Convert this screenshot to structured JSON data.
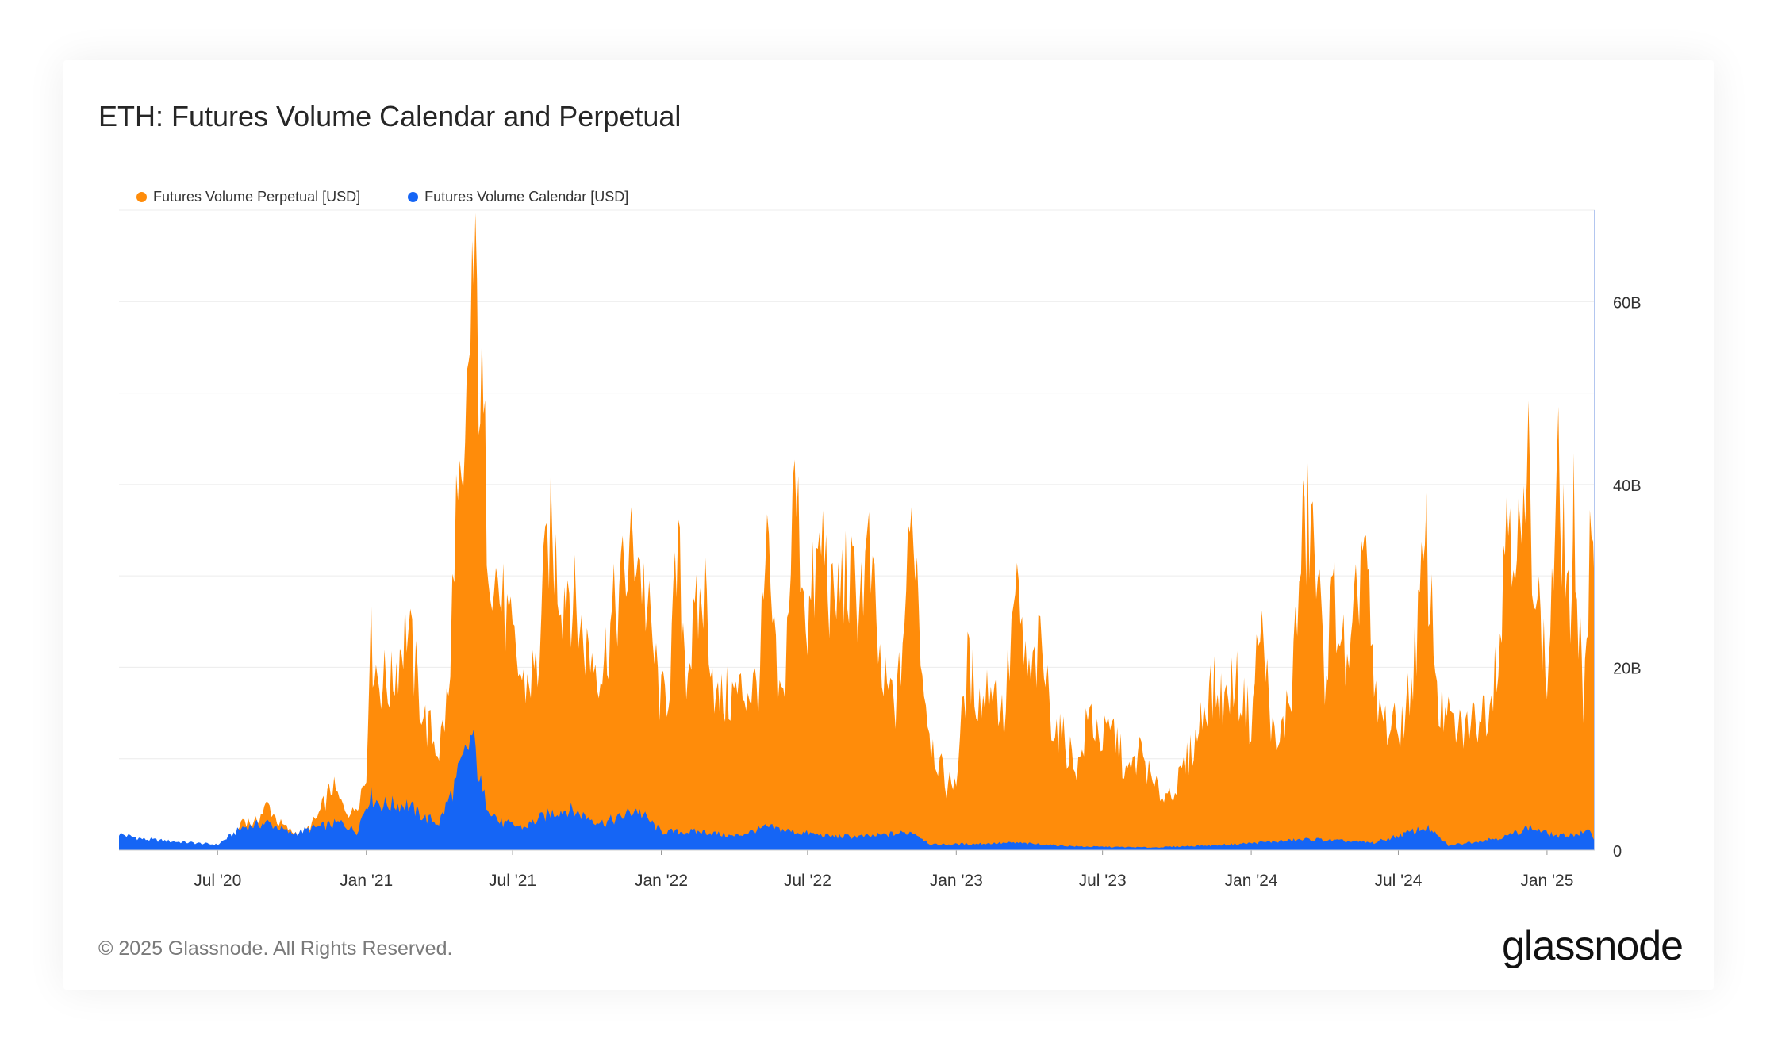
{
  "title": "ETH: Futures Volume Calendar and Perpetual",
  "footer": "© 2025 Glassnode. All Rights Reserved.",
  "logo": "glassnode",
  "colors": {
    "perpetual": "#ff8c0a",
    "calendar": "#1565f5",
    "grid": "#ececec",
    "axis": "#b3c6ef"
  },
  "chart_data": {
    "type": "area",
    "title": "ETH: Futures Volume Calendar and Perpetual",
    "x_start": "2020-03-01",
    "x_end": "2025-03-01",
    "x_ticks": [
      "Jul '20",
      "Jan '21",
      "Jul '21",
      "Jan '22",
      "Jul '22",
      "Jan '23",
      "Jul '23",
      "Jan '24",
      "Jul '24",
      "Jan '25"
    ],
    "y_ticks": [
      "0",
      "20B",
      "40B",
      "60B"
    ],
    "y_unit": "USD",
    "ylim": [
      0,
      70000000000
    ],
    "y_axis_side": "right",
    "legend_position": "top-left",
    "grid": true,
    "series": [
      {
        "name": "Futures Volume Perpetual [USD]",
        "color": "#ff8c0a",
        "points": [
          [
            "2020-03-01",
            1500000000.0
          ],
          [
            "2020-04-01",
            1000000000.0
          ],
          [
            "2020-05-01",
            900000000.0
          ],
          [
            "2020-06-01",
            700000000.0
          ],
          [
            "2020-06-20",
            600000000.0
          ],
          [
            "2020-07-01",
            600000000.0
          ],
          [
            "2020-07-20",
            800000000.0
          ],
          [
            "2020-08-01",
            3500000000.0
          ],
          [
            "2020-08-15",
            2800000000.0
          ],
          [
            "2020-09-01",
            5000000000.0
          ],
          [
            "2020-09-15",
            3000000000.0
          ],
          [
            "2020-10-01",
            2000000000.0
          ],
          [
            "2020-10-15",
            1800000000.0
          ],
          [
            "2020-11-01",
            3500000000.0
          ],
          [
            "2020-11-20",
            7000000000.0
          ],
          [
            "2020-12-01",
            5000000000.0
          ],
          [
            "2020-12-15",
            4000000000.0
          ],
          [
            "2021-01-01",
            8000000000.0
          ],
          [
            "2021-01-05",
            24000000000.0
          ],
          [
            "2021-01-15",
            19000000000.0
          ],
          [
            "2021-02-01",
            18000000000.0
          ],
          [
            "2021-02-20",
            25000000000.0
          ],
          [
            "2021-03-01",
            20000000000.0
          ],
          [
            "2021-03-15",
            14000000000.0
          ],
          [
            "2021-04-01",
            11000000000.0
          ],
          [
            "2021-04-15",
            18000000000.0
          ],
          [
            "2021-04-20",
            37000000000.0
          ],
          [
            "2021-05-01",
            35000000000.0
          ],
          [
            "2021-05-12",
            63000000000.0
          ],
          [
            "2021-05-20",
            55000000000.0
          ],
          [
            "2021-06-01",
            35000000000.0
          ],
          [
            "2021-06-15",
            28000000000.0
          ],
          [
            "2021-07-01",
            22000000000.0
          ],
          [
            "2021-07-15",
            18000000000.0
          ],
          [
            "2021-08-01",
            20000000000.0
          ],
          [
            "2021-08-15",
            35000000000.0
          ],
          [
            "2021-09-01",
            28000000000.0
          ],
          [
            "2021-09-07",
            30000000000.0
          ],
          [
            "2021-09-20",
            25000000000.0
          ],
          [
            "2021-10-01",
            22000000000.0
          ],
          [
            "2021-10-20",
            20000000000.0
          ],
          [
            "2021-11-01",
            25000000000.0
          ],
          [
            "2021-11-10",
            28000000000.0
          ],
          [
            "2021-12-01",
            34000000000.0
          ],
          [
            "2021-12-15",
            26000000000.0
          ],
          [
            "2022-01-01",
            16000000000.0
          ],
          [
            "2022-01-10",
            18000000000.0
          ],
          [
            "2022-01-22",
            32000000000.0
          ],
          [
            "2022-02-01",
            20000000000.0
          ],
          [
            "2022-02-24",
            29000000000.0
          ],
          [
            "2022-03-10",
            16000000000.0
          ],
          [
            "2022-04-01",
            17000000000.0
          ],
          [
            "2022-05-01",
            18000000000.0
          ],
          [
            "2022-05-12",
            32000000000.0
          ],
          [
            "2022-05-25",
            17000000000.0
          ],
          [
            "2022-06-01",
            16000000000.0
          ],
          [
            "2022-06-15",
            40000000000.0
          ],
          [
            "2022-07-01",
            25000000000.0
          ],
          [
            "2022-07-20",
            34000000000.0
          ],
          [
            "2022-08-01",
            26000000000.0
          ],
          [
            "2022-08-15",
            30000000000.0
          ],
          [
            "2022-09-01",
            28000000000.0
          ],
          [
            "2022-09-15",
            32000000000.0
          ],
          [
            "2022-10-01",
            18000000000.0
          ],
          [
            "2022-10-20",
            16000000000.0
          ],
          [
            "2022-11-09",
            38000000000.0
          ],
          [
            "2022-11-20",
            20000000000.0
          ],
          [
            "2022-12-01",
            12000000000.0
          ],
          [
            "2022-12-20",
            7000000000.0
          ],
          [
            "2023-01-01",
            8000000000.0
          ],
          [
            "2023-01-15",
            20000000000.0
          ],
          [
            "2023-02-01",
            16000000000.0
          ],
          [
            "2023-02-15",
            19000000000.0
          ],
          [
            "2023-03-01",
            14000000000.0
          ],
          [
            "2023-03-15",
            28000000000.0
          ],
          [
            "2023-04-01",
            18000000000.0
          ],
          [
            "2023-04-15",
            22000000000.0
          ],
          [
            "2023-05-01",
            14000000000.0
          ],
          [
            "2023-05-20",
            11000000000.0
          ],
          [
            "2023-06-01",
            9000000000.0
          ],
          [
            "2023-06-15",
            15000000000.0
          ],
          [
            "2023-07-01",
            12000000000.0
          ],
          [
            "2023-07-15",
            13000000000.0
          ],
          [
            "2023-08-01",
            8000000000.0
          ],
          [
            "2023-08-18",
            11000000000.0
          ],
          [
            "2023-09-01",
            7000000000.0
          ],
          [
            "2023-09-15",
            6000000000.0
          ],
          [
            "2023-10-01",
            7000000000.0
          ],
          [
            "2023-10-24",
            12000000000.0
          ],
          [
            "2023-11-10",
            18000000000.0
          ],
          [
            "2023-12-01",
            16000000000.0
          ],
          [
            "2023-12-10",
            19000000000.0
          ],
          [
            "2024-01-01",
            14000000000.0
          ],
          [
            "2024-01-12",
            25000000000.0
          ],
          [
            "2024-02-01",
            10000000000.0
          ],
          [
            "2024-02-20",
            18000000000.0
          ],
          [
            "2024-03-05",
            34000000000.0
          ],
          [
            "2024-03-15",
            36000000000.0
          ],
          [
            "2024-04-01",
            20000000000.0
          ],
          [
            "2024-04-13",
            28000000000.0
          ],
          [
            "2024-05-01",
            18000000000.0
          ],
          [
            "2024-05-20",
            36000000000.0
          ],
          [
            "2024-06-01",
            16000000000.0
          ],
          [
            "2024-06-15",
            14000000000.0
          ],
          [
            "2024-07-01",
            13000000000.0
          ],
          [
            "2024-07-15",
            17000000000.0
          ],
          [
            "2024-08-05",
            33000000000.0
          ],
          [
            "2024-08-20",
            16000000000.0
          ],
          [
            "2024-09-01",
            14000000000.0
          ],
          [
            "2024-09-15",
            13000000000.0
          ],
          [
            "2024-10-01",
            14000000000.0
          ],
          [
            "2024-10-20",
            16000000000.0
          ],
          [
            "2024-11-06",
            25000000000.0
          ],
          [
            "2024-11-12",
            39000000000.0
          ],
          [
            "2024-12-01",
            32000000000.0
          ],
          [
            "2024-12-09",
            41000000000.0
          ],
          [
            "2024-12-20",
            28000000000.0
          ],
          [
            "2025-01-01",
            18000000000.0
          ],
          [
            "2025-01-07",
            28000000000.0
          ],
          [
            "2025-01-15",
            40000000000.0
          ],
          [
            "2025-02-01",
            24000000000.0
          ],
          [
            "2025-02-03",
            36000000000.0
          ],
          [
            "2025-02-15",
            17000000000.0
          ],
          [
            "2025-02-25",
            35000000000.0
          ],
          [
            "2025-03-01",
            28000000000.0
          ]
        ]
      },
      {
        "name": "Futures Volume Calendar [USD]",
        "color": "#1565f5",
        "points": [
          [
            "2020-03-01",
            1800000000.0
          ],
          [
            "2020-03-15",
            1500000000.0
          ],
          [
            "2020-04-01",
            1200000000.0
          ],
          [
            "2020-05-01",
            1000000000.0
          ],
          [
            "2020-06-01",
            800000000.0
          ],
          [
            "2020-07-01",
            600000000.0
          ],
          [
            "2020-08-01",
            2500000000.0
          ],
          [
            "2020-09-01",
            3000000000.0
          ],
          [
            "2020-10-01",
            1800000000.0
          ],
          [
            "2020-11-01",
            2500000000.0
          ],
          [
            "2020-12-01",
            3000000000.0
          ],
          [
            "2020-12-20",
            2000000000.0
          ],
          [
            "2021-01-05",
            6000000000.0
          ],
          [
            "2021-01-20",
            5000000000.0
          ],
          [
            "2021-02-20",
            5000000000.0
          ],
          [
            "2021-03-15",
            3500000000.0
          ],
          [
            "2021-04-01",
            3000000000.0
          ],
          [
            "2021-04-20",
            7000000000.0
          ],
          [
            "2021-05-12",
            12500000000.0
          ],
          [
            "2021-05-25",
            6000000000.0
          ],
          [
            "2021-06-15",
            3000000000.0
          ],
          [
            "2021-07-15",
            2500000000.0
          ],
          [
            "2021-08-15",
            4000000000.0
          ],
          [
            "2021-09-07",
            4500000000.0
          ],
          [
            "2021-10-20",
            3000000000.0
          ],
          [
            "2021-11-10",
            3500000000.0
          ],
          [
            "2021-12-01",
            4500000000.0
          ],
          [
            "2022-01-01",
            2000000000.0
          ],
          [
            "2022-02-24",
            2000000000.0
          ],
          [
            "2022-04-01",
            1500000000.0
          ],
          [
            "2022-05-12",
            2500000000.0
          ],
          [
            "2022-06-15",
            2000000000.0
          ],
          [
            "2022-08-01",
            1500000000.0
          ],
          [
            "2022-09-15",
            1500000000.0
          ],
          [
            "2022-11-09",
            2000000000.0
          ],
          [
            "2022-12-01",
            600000000.0
          ],
          [
            "2023-03-15",
            800000000.0
          ],
          [
            "2023-06-01",
            400000000.0
          ],
          [
            "2023-09-01",
            300000000.0
          ],
          [
            "2023-12-01",
            600000000.0
          ],
          [
            "2024-03-15",
            1200000000.0
          ],
          [
            "2024-06-01",
            800000000.0
          ],
          [
            "2024-08-05",
            2500000000.0
          ],
          [
            "2024-09-01",
            500000000.0
          ],
          [
            "2024-11-12",
            1500000000.0
          ],
          [
            "2024-12-09",
            2500000000.0
          ],
          [
            "2025-01-15",
            1500000000.0
          ],
          [
            "2025-02-25",
            2000000000.0
          ],
          [
            "2025-03-01",
            1000000000.0
          ]
        ]
      }
    ]
  }
}
